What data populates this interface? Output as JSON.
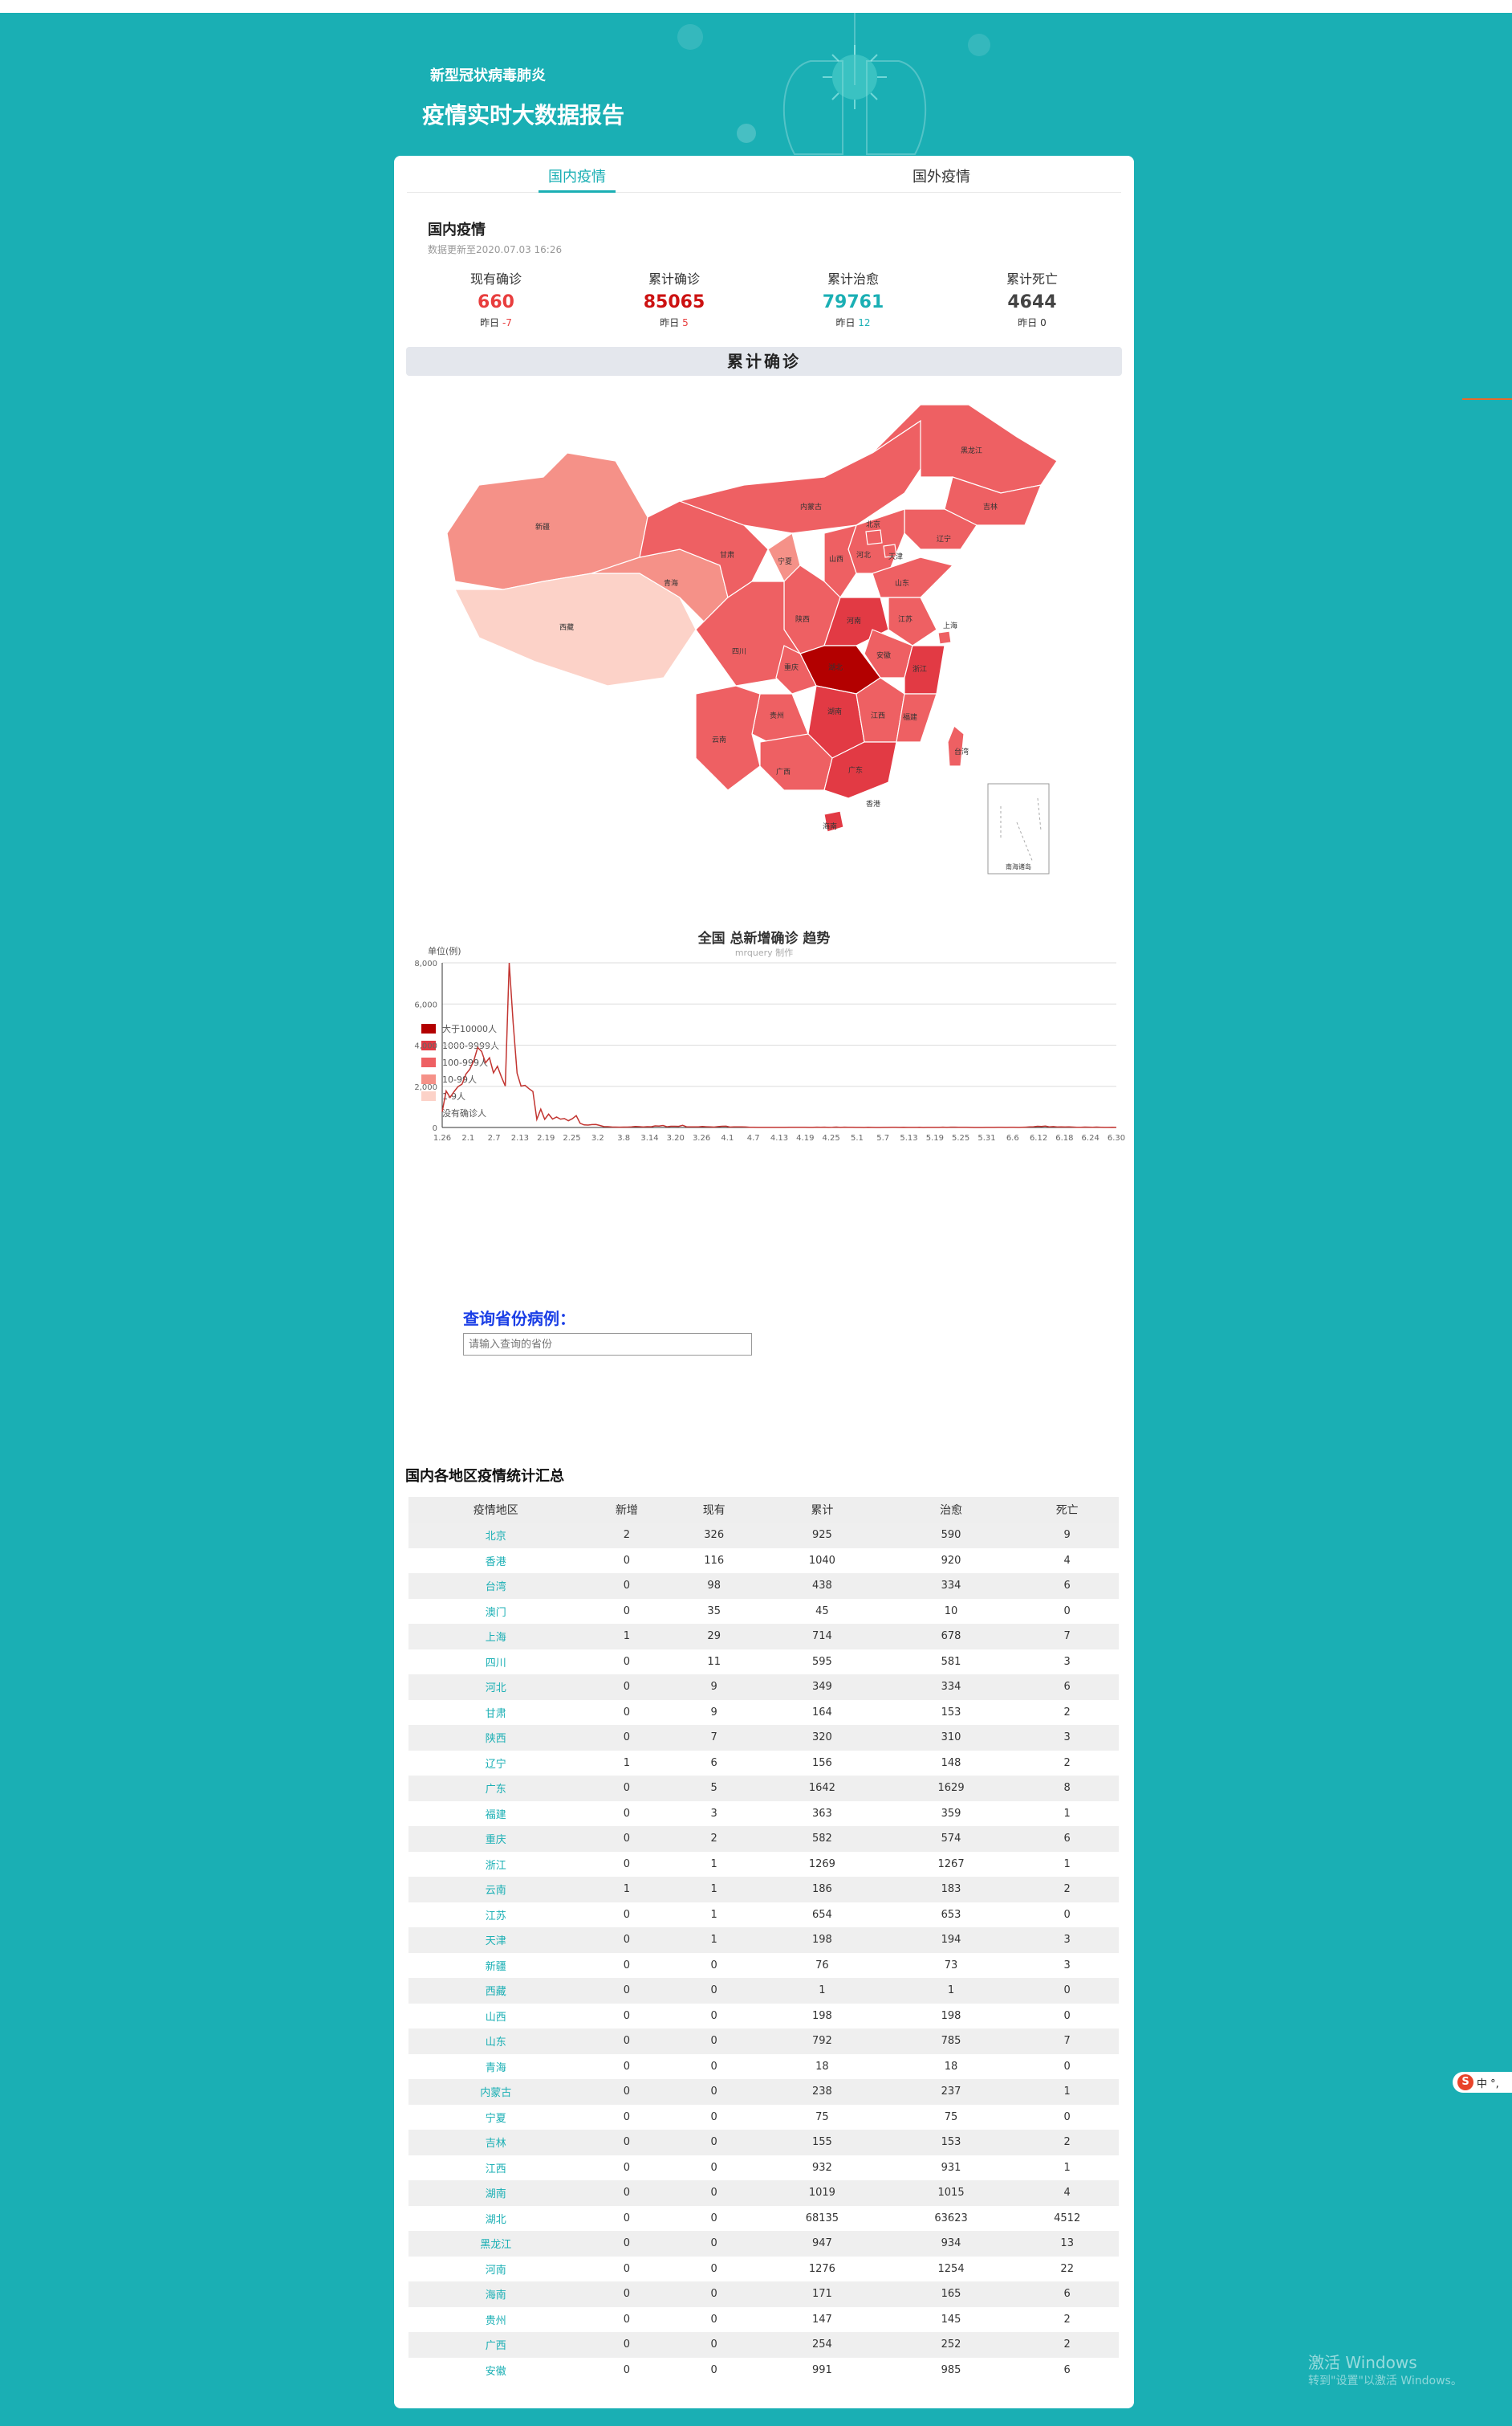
{
  "header": {
    "subtitle": "新型冠状病毒肺炎",
    "title": "疫情实时大数据报告"
  },
  "tabs": [
    {
      "label": "国内疫情",
      "active": true
    },
    {
      "label": "国外疫情",
      "active": false
    }
  ],
  "summary": {
    "title": "国内疫情",
    "update": "数据更新至2020.07.03 16:26",
    "stats": [
      {
        "label": "现有确诊",
        "value": "660",
        "yesterday_label": "昨日",
        "yesterday": "-7",
        "color": "#e83e3e"
      },
      {
        "label": "累计确诊",
        "value": "85065",
        "yesterday_label": "昨日",
        "yesterday": "5",
        "color": "#cc1111"
      },
      {
        "label": "累计治愈",
        "value": "79761",
        "yesterday_label": "昨日",
        "yesterday": "12",
        "color": "#1aafb4"
      },
      {
        "label": "累计死亡",
        "value": "4644",
        "yesterday_label": "昨日",
        "yesterday": "0",
        "color": "#444444"
      }
    ]
  },
  "map": {
    "title": "累计确诊",
    "legend": [
      {
        "label": "大于10000人",
        "color": "#b30000"
      },
      {
        "label": "1000-9999人",
        "color": "#e23a44"
      },
      {
        "label": "100-999人",
        "color": "#ee6063"
      },
      {
        "label": "10-99人",
        "color": "#f59188"
      },
      {
        "label": "1-9人",
        "color": "#fcd2c8"
      },
      {
        "label": "没有确诊人",
        "color": "#ffffff"
      }
    ],
    "labels": [
      "新疆",
      "西藏",
      "青海",
      "甘肃",
      "宁夏",
      "内蒙古",
      "黑龙江",
      "吉林",
      "辽宁",
      "北京",
      "天津",
      "河北",
      "山西",
      "陕西",
      "四川",
      "重庆",
      "湖北",
      "河南",
      "山东",
      "江苏",
      "安徽",
      "上海",
      "浙江",
      "江西",
      "湖南",
      "贵州",
      "云南",
      "广西",
      "广东",
      "福建",
      "台湾",
      "海南",
      "香港",
      "南海诸岛"
    ]
  },
  "chart_data": {
    "type": "line",
    "title": "全国 总新增确诊 趋势",
    "subtitle": "mrquery 制作",
    "ylabel": "单位(例)",
    "ylim": [
      0,
      8000
    ],
    "yticks": [
      "0",
      "2,000",
      "4,000",
      "6,000",
      "8,000"
    ],
    "xticks": [
      "1.26",
      "2.1",
      "2.7",
      "2.13",
      "2.19",
      "2.25",
      "3.2",
      "3.8",
      "3.14",
      "3.20",
      "3.26",
      "4.1",
      "4.7",
      "4.13",
      "4.19",
      "4.25",
      "5.1",
      "5.7",
      "5.13",
      "5.19",
      "5.25",
      "5.31",
      "6.6",
      "6.12",
      "6.18",
      "6.24",
      "6.30"
    ],
    "series": [
      {
        "color": "#c23531",
        "values": [
          770,
          1771,
          1459,
          1737,
          1982,
          2102,
          2590,
          2829,
          3235,
          3887,
          3694,
          3143,
          3385,
          2652,
          2973,
          2467,
          2015,
          14108,
          5090,
          2641,
          2009,
          2048,
          1886,
          1749,
          394,
          889,
          397,
          648,
          409,
          508,
          406,
          433,
          327,
          427,
          573,
          202,
          125,
          119,
          139,
          143,
          99,
          44,
          40,
          24,
          20,
          15,
          19,
          21,
          29,
          46,
          38,
          25,
          40,
          36,
          78,
          67,
          98,
          34,
          59,
          60,
          54,
          105,
          31,
          30,
          30,
          29,
          48,
          35,
          28,
          19,
          41,
          59,
          61,
          20,
          32,
          31,
          30,
          25,
          7,
          12,
          5,
          4,
          5,
          4,
          3,
          2,
          4,
          3,
          8,
          6,
          9,
          10,
          9,
          3,
          2,
          17,
          13,
          14,
          3,
          7,
          21,
          5,
          15,
          8,
          12,
          3,
          3,
          1,
          8,
          2,
          1,
          0,
          3,
          5,
          7,
          6,
          4,
          9,
          4,
          3,
          3,
          7,
          1,
          4,
          3,
          4,
          3,
          17,
          4,
          17,
          16,
          11,
          8,
          7,
          3,
          1,
          1,
          1,
          2,
          5,
          2,
          11,
          7,
          5,
          6,
          6,
          5,
          9,
          17,
          27,
          36,
          57,
          49,
          67,
          31,
          44,
          25,
          28,
          22,
          32,
          18,
          12,
          11,
          19,
          17,
          7,
          19,
          13,
          4,
          3,
          7,
          5
        ]
      }
    ]
  },
  "query": {
    "label": "查询省份病例：",
    "placeholder": "请输入查询的省份"
  },
  "table": {
    "title": "国内各地区疫情统计汇总",
    "headers": [
      "疫情地区",
      "新增",
      "现有",
      "累计",
      "治愈",
      "死亡"
    ],
    "rows": [
      [
        "北京",
        "2",
        "326",
        "925",
        "590",
        "9"
      ],
      [
        "香港",
        "0",
        "116",
        "1040",
        "920",
        "4"
      ],
      [
        "台湾",
        "0",
        "98",
        "438",
        "334",
        "6"
      ],
      [
        "澳门",
        "0",
        "35",
        "45",
        "10",
        "0"
      ],
      [
        "上海",
        "1",
        "29",
        "714",
        "678",
        "7"
      ],
      [
        "四川",
        "0",
        "11",
        "595",
        "581",
        "3"
      ],
      [
        "河北",
        "0",
        "9",
        "349",
        "334",
        "6"
      ],
      [
        "甘肃",
        "0",
        "9",
        "164",
        "153",
        "2"
      ],
      [
        "陕西",
        "0",
        "7",
        "320",
        "310",
        "3"
      ],
      [
        "辽宁",
        "1",
        "6",
        "156",
        "148",
        "2"
      ],
      [
        "广东",
        "0",
        "5",
        "1642",
        "1629",
        "8"
      ],
      [
        "福建",
        "0",
        "3",
        "363",
        "359",
        "1"
      ],
      [
        "重庆",
        "0",
        "2",
        "582",
        "574",
        "6"
      ],
      [
        "浙江",
        "0",
        "1",
        "1269",
        "1267",
        "1"
      ],
      [
        "云南",
        "1",
        "1",
        "186",
        "183",
        "2"
      ],
      [
        "江苏",
        "0",
        "1",
        "654",
        "653",
        "0"
      ],
      [
        "天津",
        "0",
        "1",
        "198",
        "194",
        "3"
      ],
      [
        "新疆",
        "0",
        "0",
        "76",
        "73",
        "3"
      ],
      [
        "西藏",
        "0",
        "0",
        "1",
        "1",
        "0"
      ],
      [
        "山西",
        "0",
        "0",
        "198",
        "198",
        "0"
      ],
      [
        "山东",
        "0",
        "0",
        "792",
        "785",
        "7"
      ],
      [
        "青海",
        "0",
        "0",
        "18",
        "18",
        "0"
      ],
      [
        "内蒙古",
        "0",
        "0",
        "238",
        "237",
        "1"
      ],
      [
        "宁夏",
        "0",
        "0",
        "75",
        "75",
        "0"
      ],
      [
        "吉林",
        "0",
        "0",
        "155",
        "153",
        "2"
      ],
      [
        "江西",
        "0",
        "0",
        "932",
        "931",
        "1"
      ],
      [
        "湖南",
        "0",
        "0",
        "1019",
        "1015",
        "4"
      ],
      [
        "湖北",
        "0",
        "0",
        "68135",
        "63623",
        "4512"
      ],
      [
        "黑龙江",
        "0",
        "0",
        "947",
        "934",
        "13"
      ],
      [
        "河南",
        "0",
        "0",
        "1276",
        "1254",
        "22"
      ],
      [
        "海南",
        "0",
        "0",
        "171",
        "165",
        "6"
      ],
      [
        "贵州",
        "0",
        "0",
        "147",
        "145",
        "2"
      ],
      [
        "广西",
        "0",
        "0",
        "254",
        "252",
        "2"
      ],
      [
        "安徽",
        "0",
        "0",
        "991",
        "985",
        "6"
      ]
    ]
  },
  "ime": {
    "logo": "S",
    "text": "中 °,"
  },
  "watermark": {
    "line1": "激活 Windows",
    "line2": "转到\"设置\"以激活 Windows。"
  }
}
